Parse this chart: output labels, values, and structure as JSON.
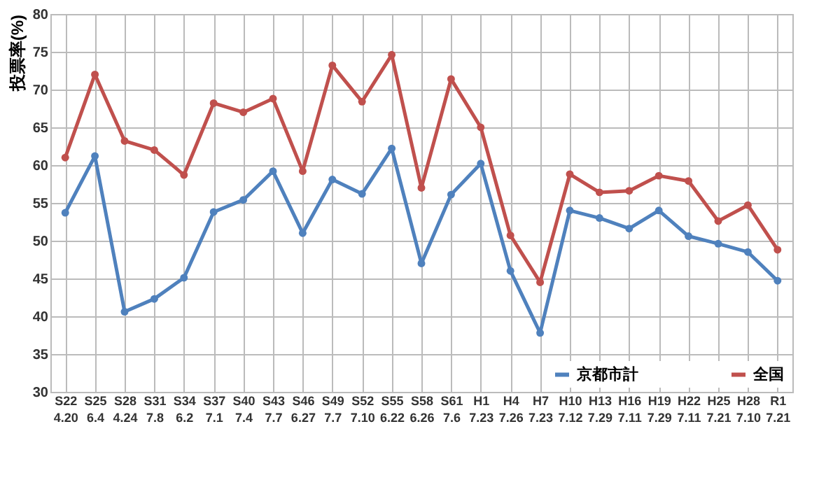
{
  "chart_data": {
    "type": "line",
    "ylabel": "投票率(%)",
    "categories": [
      "S22 4.20",
      "S25 6.4",
      "S28 4.24",
      "S31 7.8",
      "S34 6.2",
      "S37 7.1",
      "S40 7.4",
      "S43 7.7",
      "S46 6.27",
      "S49 7.7",
      "S52 7.10",
      "S55 6.22",
      "S58 6.26",
      "S61 7.6",
      "H1 7.23",
      "H4 7.26",
      "H7 7.23",
      "H10 7.12",
      "H13 7.29",
      "H16 7.11",
      "H19 7.29",
      "H22 7.11",
      "H25 7.21",
      "H28 7.10",
      "R1 7.21"
    ],
    "series": [
      {
        "name": "京都市計",
        "color": "#4f81bd",
        "values": [
          53.7,
          61.2,
          40.6,
          42.3,
          45.1,
          53.8,
          55.4,
          59.2,
          51.0,
          58.1,
          56.2,
          62.2,
          47.0,
          56.1,
          60.2,
          46.0,
          37.8,
          54.0,
          53.0,
          51.6,
          54.0,
          50.6,
          49.6,
          48.5,
          44.7
        ]
      },
      {
        "name": "全国",
        "color": "#c0504d",
        "values": [
          61.0,
          72.0,
          63.2,
          62.0,
          58.7,
          68.2,
          67.0,
          68.8,
          59.2,
          73.2,
          68.4,
          74.6,
          57.0,
          71.4,
          65.0,
          50.7,
          44.5,
          58.8,
          56.4,
          56.6,
          58.6,
          57.9,
          52.6,
          54.7,
          48.8
        ]
      }
    ],
    "ylim": [
      30,
      80
    ],
    "yticks": [
      30,
      35,
      40,
      45,
      50,
      55,
      60,
      65,
      70,
      75,
      80
    ],
    "grid": true,
    "legend": "bottom right",
    "marker": "circle",
    "line_style": "solid"
  }
}
